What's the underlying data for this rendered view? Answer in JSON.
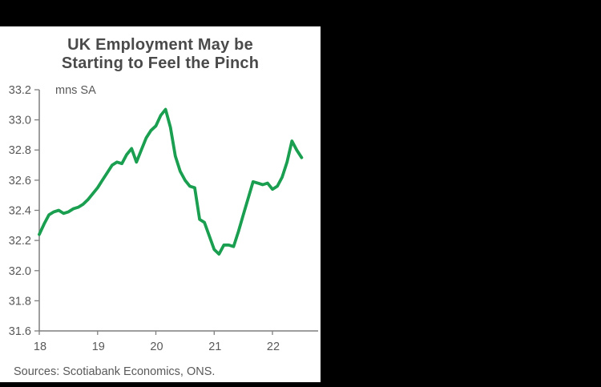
{
  "colors": {
    "background": "#000000",
    "panel": "#ffffff",
    "line_green": "#1a9e50",
    "title_text": "#4a4a4a",
    "label_text": "#595959",
    "axis_line": "#7f7f7f"
  },
  "chart_data": {
    "type": "line",
    "title": "UK Employment May be Starting to Feel the Pinch",
    "title_lines": [
      "UK Employment May be",
      "Starting to Feel the Pinch"
    ],
    "unit_label": "mns SA",
    "source_note": "Sources: Scotiabank Economics, ONS.",
    "grid": false,
    "legend": "none",
    "y_axis": {
      "min": 31.6,
      "max": 33.2,
      "major_step": 0.2,
      "tick_labels": [
        "33.2",
        "33.0",
        "32.8",
        "32.6",
        "32.4",
        "32.2",
        "32.0",
        "31.8",
        "31.6"
      ]
    },
    "x_axis": {
      "tick_labels": [
        "18",
        "19",
        "20",
        "21",
        "22"
      ],
      "start": "2018-01",
      "frequency": "monthly"
    },
    "ylim": [
      31.6,
      33.2
    ],
    "series": [
      {
        "name": "UK employment, millions, seasonally adjusted",
        "color": "#1a9e50",
        "x_start": "2018-01",
        "frequency": "monthly",
        "values": [
          32.24,
          32.31,
          32.37,
          32.39,
          32.4,
          32.38,
          32.39,
          32.41,
          32.42,
          32.44,
          32.47,
          32.51,
          32.55,
          32.6,
          32.65,
          32.7,
          32.72,
          32.71,
          32.77,
          32.81,
          32.72,
          32.8,
          32.88,
          32.93,
          32.96,
          33.03,
          33.07,
          32.95,
          32.76,
          32.66,
          32.6,
          32.56,
          32.55,
          32.34,
          32.32,
          32.23,
          32.14,
          32.11,
          32.17,
          32.17,
          32.16,
          32.26,
          32.37,
          32.48,
          32.59,
          32.58,
          32.57,
          32.58,
          32.54,
          32.56,
          32.62,
          32.72,
          32.86,
          32.8,
          32.75
        ]
      }
    ]
  }
}
